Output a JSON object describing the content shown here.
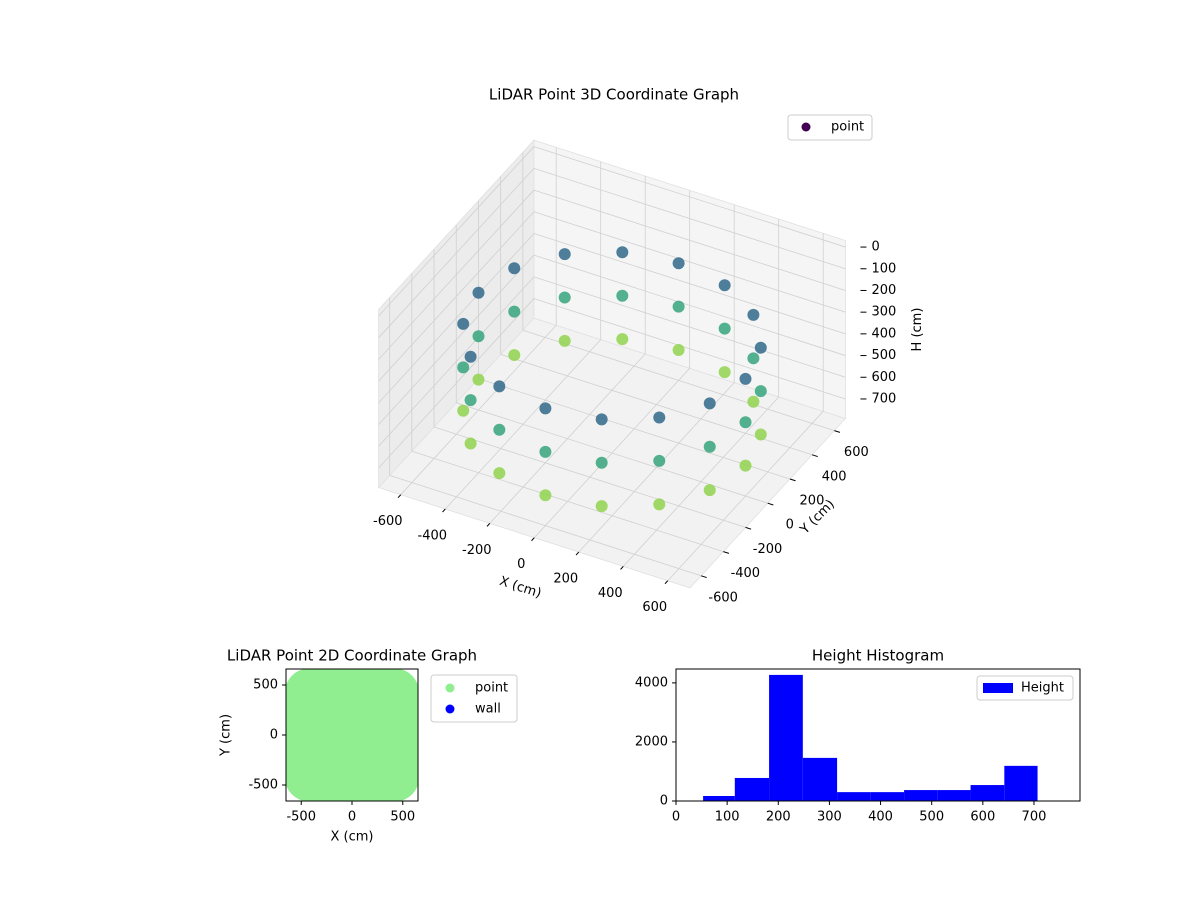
{
  "chart_data": [
    {
      "type": "scatter3d",
      "title": "LiDAR Point 3D Coordinate Graph",
      "xlabel": "X (cm)",
      "ylabel": "Y (cm)",
      "zlabel": "H (cm)",
      "xlim": [
        -700,
        700
      ],
      "ylim": [
        -700,
        700
      ],
      "zlim": [
        790,
        -30
      ],
      "xticks": [
        -600,
        -400,
        -200,
        0,
        200,
        400,
        600
      ],
      "yticks": [
        -600,
        -400,
        -200,
        0,
        200,
        400,
        600
      ],
      "zticks": [
        0,
        100,
        200,
        300,
        400,
        500,
        600,
        700
      ],
      "colormap": [
        "#440154",
        "#3b528b",
        "#21918c",
        "#5ec962",
        "#fde725"
      ],
      "grid": true,
      "legend": "upper right",
      "series": [
        {
          "name": "point",
          "x": [
            600,
            554,
            424,
            230,
            0,
            -230,
            -424,
            -554,
            -600,
            -554,
            -424,
            -230,
            0,
            230,
            424,
            554,
            600,
            554,
            424,
            230,
            0,
            -230,
            -424,
            -554,
            -600,
            -554,
            -424,
            -230,
            0,
            230,
            424,
            554,
            600,
            554,
            424,
            230,
            0,
            -230,
            -424,
            -554,
            -600,
            -554,
            -424,
            -230,
            0,
            230,
            424,
            554
          ],
          "y": [
            0,
            230,
            424,
            554,
            600,
            554,
            424,
            230,
            0,
            -230,
            -424,
            -554,
            -600,
            -554,
            -424,
            -230,
            0,
            230,
            424,
            554,
            600,
            554,
            424,
            230,
            0,
            -230,
            -424,
            -554,
            -600,
            -554,
            -424,
            -230,
            0,
            230,
            424,
            554,
            600,
            554,
            424,
            230,
            0,
            -230,
            -424,
            -554,
            -600,
            -554,
            -424,
            -230
          ],
          "z": [
            250,
            250,
            250,
            250,
            250,
            250,
            250,
            250,
            250,
            250,
            250,
            250,
            250,
            250,
            250,
            250,
            450,
            450,
            450,
            450,
            450,
            450,
            450,
            450,
            450,
            450,
            450,
            450,
            450,
            450,
            450,
            450,
            650,
            650,
            650,
            650,
            650,
            650,
            650,
            650,
            650,
            650,
            650,
            650,
            650,
            650,
            650,
            650
          ]
        }
      ]
    },
    {
      "type": "scatter",
      "title": "LiDAR Point 2D Coordinate Graph",
      "xlabel": "X (cm)",
      "ylabel": "Y (cm)",
      "xlim": [
        -650,
        650
      ],
      "ylim": [
        -660,
        660
      ],
      "xticks": [
        -500,
        0,
        500
      ],
      "yticks": [
        -500,
        0,
        500
      ],
      "legend": "outside right",
      "series": [
        {
          "name": "point",
          "color": "#90ee90",
          "x": [
            600,
            554,
            424,
            230,
            0,
            -230,
            -424,
            -554,
            -600,
            -554,
            -424,
            -230,
            0,
            230,
            424,
            554,
            300,
            212,
            0,
            -212,
            -300,
            -212,
            0,
            212,
            0
          ],
          "y": [
            0,
            230,
            424,
            554,
            600,
            554,
            424,
            230,
            0,
            -230,
            -424,
            -554,
            -600,
            -554,
            -424,
            -230,
            0,
            212,
            300,
            212,
            0,
            -212,
            -300,
            -212,
            0
          ]
        },
        {
          "name": "wall",
          "color": "#0000ff",
          "x": [],
          "y": []
        }
      ]
    },
    {
      "type": "histogram",
      "title": "Height Histogram",
      "name": "Height",
      "color": "#0000ff",
      "bins": [
        53,
        115,
        182,
        248,
        315,
        380,
        446,
        512,
        576,
        642,
        707
      ],
      "values": [
        170,
        780,
        4270,
        1460,
        300,
        300,
        370,
        370,
        540,
        1190
      ],
      "xlim": [
        0,
        790
      ],
      "ylim": [
        0,
        4470
      ],
      "xticks": [
        0,
        100,
        200,
        300,
        400,
        500,
        600,
        700
      ],
      "yticks": [
        0,
        2000,
        4000
      ],
      "legend": "upper right"
    }
  ]
}
